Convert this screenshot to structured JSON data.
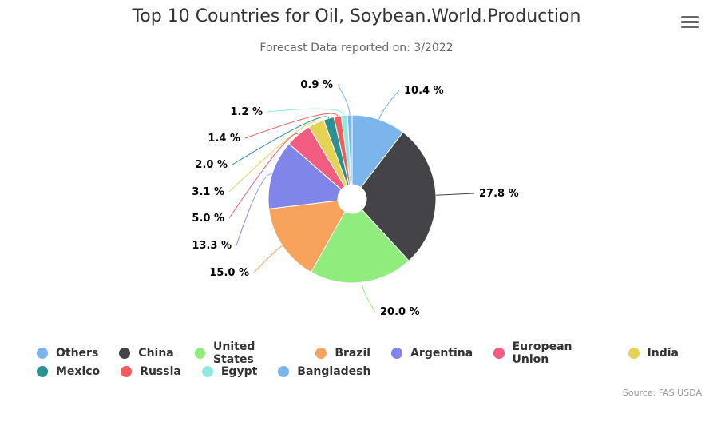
{
  "chart_data": {
    "type": "pie",
    "title": "Top 10 Countries for Oil, Soybean.World.Production",
    "subtitle": "Forecast Data reported on: 3/2022",
    "slices": [
      {
        "name": "Others",
        "value": 10.4,
        "label": "10.4 %",
        "color": "#7cb5ec"
      },
      {
        "name": "China",
        "value": 27.8,
        "label": "27.8 %",
        "color": "#434348"
      },
      {
        "name": "United States",
        "value": 20.0,
        "label": "20.0 %",
        "color": "#90ed7d"
      },
      {
        "name": "Brazil",
        "value": 15.0,
        "label": "15.0 %",
        "color": "#f7a35c"
      },
      {
        "name": "Argentina",
        "value": 13.3,
        "label": "13.3 %",
        "color": "#8085e9"
      },
      {
        "name": "European Union",
        "value": 5.0,
        "label": "5.0 %",
        "color": "#f15c80"
      },
      {
        "name": "India",
        "value": 3.1,
        "label": "3.1 %",
        "color": "#e4d354"
      },
      {
        "name": "Mexico",
        "value": 2.0,
        "label": "2.0 %",
        "color": "#2b908f"
      },
      {
        "name": "Russia",
        "value": 1.4,
        "label": "1.4 %",
        "color": "#f45b5b"
      },
      {
        "name": "Egypt",
        "value": 1.2,
        "label": "1.2 %",
        "color": "#91e8e1"
      },
      {
        "name": "Bangladesh",
        "value": 0.9,
        "label": "0.9 %",
        "color": "#7cb5ec"
      }
    ],
    "legend_position": "bottom",
    "source": "Source: FAS USDA"
  },
  "menu_icon": "hamburger-menu-icon"
}
